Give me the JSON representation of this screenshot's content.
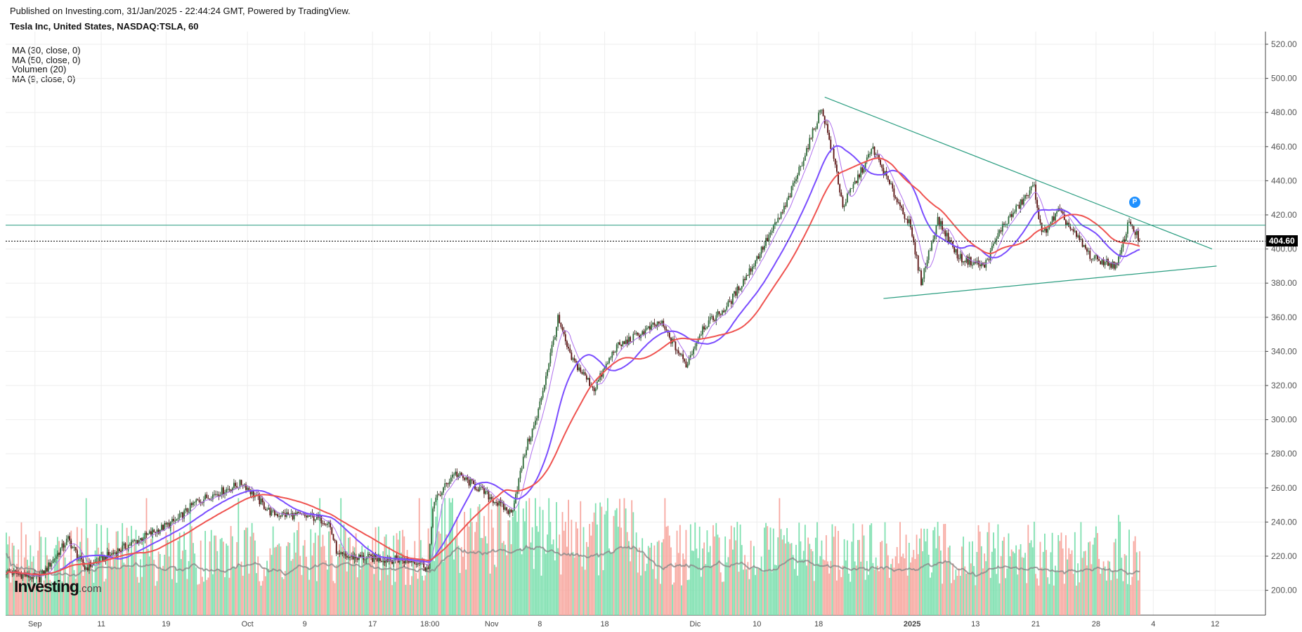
{
  "header": {
    "published": "Published on Investing.com, 31/Jan/2025 - 22:44:24 GMT, Powered by TradingView.",
    "title": "Tesla Inc, United States, NASDAQ:TSLA, 60"
  },
  "legend": [
    "MA (30, close, 0)",
    "MA (50, close, 0)",
    "Volumen (20)",
    "MA (9, close, 0)"
  ],
  "logo": {
    "main": "Investing",
    "suffix": ".com"
  },
  "marker": "P",
  "chart_data": {
    "type": "candlestick",
    "title": "Tesla Inc, United States, NASDAQ:TSLA, 60",
    "ylim": [
      186,
      524
    ],
    "y_ticks": [
      200,
      220,
      240,
      260,
      280,
      300,
      320,
      340,
      360,
      380,
      400,
      420,
      440,
      460,
      480,
      500,
      520
    ],
    "x_ticks": [
      {
        "label": "Sep",
        "bar": 19
      },
      {
        "label": "11",
        "bar": 63
      },
      {
        "label": "19",
        "bar": 106
      },
      {
        "label": "Oct",
        "bar": 160
      },
      {
        "label": "9",
        "bar": 198
      },
      {
        "label": "17",
        "bar": 243
      },
      {
        "label": "18:00",
        "bar": 281
      },
      {
        "label": "Nov",
        "bar": 322
      },
      {
        "label": "8",
        "bar": 354
      },
      {
        "label": "18",
        "bar": 397
      },
      {
        "label": "Dic",
        "bar": 457
      },
      {
        "label": "10",
        "bar": 498
      },
      {
        "label": "18",
        "bar": 539
      },
      {
        "label": "2025",
        "bar": 601,
        "bold": true
      },
      {
        "label": "13",
        "bar": 643
      },
      {
        "label": "21",
        "bar": 683
      },
      {
        "label": "28",
        "bar": 723
      },
      {
        "label": "4",
        "bar": 761
      },
      {
        "label": "12",
        "bar": 802
      }
    ],
    "price_path": [
      [
        0,
        211
      ],
      [
        22,
        207
      ],
      [
        41,
        230
      ],
      [
        52,
        213
      ],
      [
        82,
        227
      ],
      [
        113,
        241
      ],
      [
        126,
        252
      ],
      [
        157,
        263
      ],
      [
        165,
        255
      ],
      [
        176,
        245
      ],
      [
        203,
        243
      ],
      [
        214,
        240
      ],
      [
        220,
        220
      ],
      [
        275,
        217
      ],
      [
        280,
        212
      ],
      [
        283,
        250
      ],
      [
        297,
        269
      ],
      [
        313,
        260
      ],
      [
        335,
        245
      ],
      [
        345,
        284
      ],
      [
        352,
        301
      ],
      [
        366,
        359
      ],
      [
        374,
        337
      ],
      [
        390,
        318
      ],
      [
        404,
        342
      ],
      [
        434,
        357
      ],
      [
        451,
        332
      ],
      [
        462,
        354
      ],
      [
        478,
        366
      ],
      [
        495,
        390
      ],
      [
        517,
        425
      ],
      [
        533,
        463
      ],
      [
        541,
        483
      ],
      [
        550,
        449
      ],
      [
        555,
        425
      ],
      [
        575,
        459
      ],
      [
        588,
        434
      ],
      [
        599,
        415
      ],
      [
        607,
        381
      ],
      [
        618,
        417
      ],
      [
        632,
        395
      ],
      [
        649,
        390
      ],
      [
        660,
        412
      ],
      [
        682,
        437
      ],
      [
        687,
        408
      ],
      [
        698,
        422
      ],
      [
        720,
        395
      ],
      [
        737,
        390
      ],
      [
        745,
        417
      ],
      [
        752,
        404.6
      ]
    ],
    "last_price": {
      "value": 404.6,
      "label": "404.60"
    },
    "horizontal_line": 414,
    "trendlines": [
      {
        "name": "upper",
        "from": [
          543,
          489
        ],
        "to": [
          800,
          400
        ]
      },
      {
        "name": "lower",
        "from": [
          582,
          371
        ],
        "to": [
          803,
          390
        ]
      }
    ],
    "indicators": [
      {
        "name": "MA (9, close, 0)",
        "period": 9,
        "color": "#b070ee"
      },
      {
        "name": "MA (30, close, 0)",
        "period": 30,
        "color": "#7a4dff"
      },
      {
        "name": "MA (50, close, 0)",
        "period": 50,
        "color": "#ef5350"
      },
      {
        "name": "Volumen (20)",
        "period": 20,
        "color": "#888888"
      }
    ],
    "colors": {
      "up": "#1a3a1a",
      "down": "#3a0a0a",
      "vol_up": "#7fe0b0",
      "vol_down": "#f7a8a0",
      "trend": "#2a9d80"
    }
  }
}
